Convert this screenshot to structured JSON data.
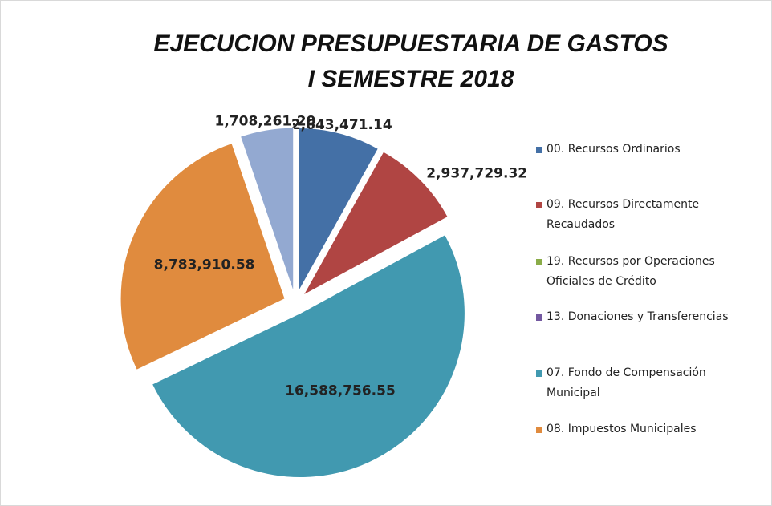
{
  "chart_data": {
    "type": "pie",
    "title": [
      "EJECUCION PRESUPUESTARIA DE GASTOS",
      "I SEMESTRE 2018"
    ],
    "categories": [
      "00. Recursos Ordinarios",
      "09. Recursos Directamente Recaudados",
      "19. Recursos por Operaciones Oficiales de Crédito",
      "13. Donaciones y Transferencias",
      "07. Fondo de Compensación Municipal",
      "08. Impuestos Municipales",
      null
    ],
    "values": [
      2643471.14,
      2937729.32,
      0,
      0,
      16588756.55,
      8783910.58,
      1708261.2
    ],
    "value_labels": [
      "2,643,471.14",
      "2,937,729.32",
      null,
      null,
      "16,588,756.55",
      "8,783,910.58",
      "1,708,261.20"
    ],
    "colors": [
      "#4470a6",
      "#b04543",
      "#8aac48",
      "#7358a0",
      "#4199b0",
      "#e08b3e",
      "#93a9d1"
    ],
    "legend": "right"
  }
}
